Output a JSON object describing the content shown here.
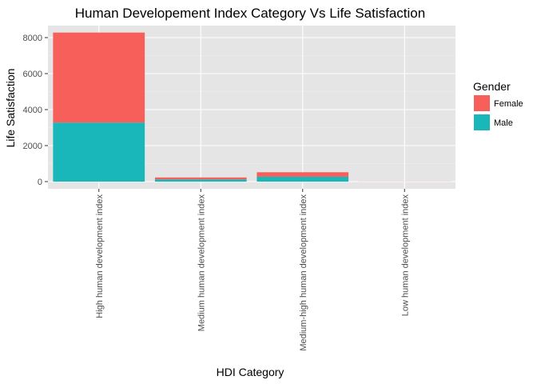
{
  "chart_data": {
    "type": "bar",
    "stacked": true,
    "title": "Human Developement Index Category Vs Life Satisfaction",
    "xlabel": "HDI Category",
    "ylabel": "Life Satisfaction",
    "categories": [
      "High human development index",
      "Medium human development index",
      "Medium-high human development index",
      "Low human development index"
    ],
    "series": [
      {
        "name": "Male",
        "color": "#19B7BA",
        "values": [
          3280,
          120,
          270,
          0
        ]
      },
      {
        "name": "Female",
        "color": "#F7605A",
        "values": [
          5000,
          110,
          250,
          5
        ]
      }
    ],
    "ylim": [
      0,
      8300
    ],
    "yticks": [
      0,
      2000,
      4000,
      6000,
      8000
    ],
    "ytick_labels": [
      "0",
      "2000",
      "4000",
      "6000",
      "8000"
    ],
    "grid": true,
    "panel_background": "#E5E5E5",
    "legend": {
      "title": "Gender",
      "position": "right",
      "entries": [
        {
          "label": "Female",
          "color": "#F7605A"
        },
        {
          "label": "Male",
          "color": "#19B7BA"
        }
      ]
    }
  }
}
